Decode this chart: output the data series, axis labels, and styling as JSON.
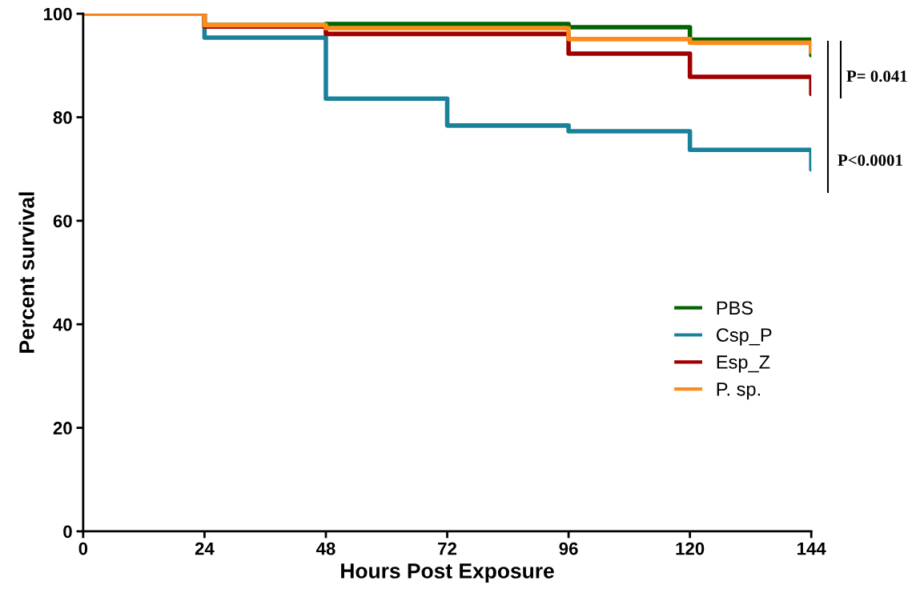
{
  "chart_data": {
    "type": "step",
    "xlabel": "Hours Post Exposure",
    "ylabel": "Percent survival",
    "xlim": [
      0,
      144
    ],
    "xticks": [
      0,
      24,
      48,
      72,
      96,
      120,
      144
    ],
    "ylim": [
      0,
      100
    ],
    "yticks": [
      0,
      20,
      40,
      60,
      80,
      100
    ],
    "grid": false,
    "legend": "right",
    "line_style": "solid",
    "series": [
      {
        "name": "PBS",
        "color": "#006400",
        "x": [
          0,
          24,
          48,
          72,
          96,
          120,
          144,
          144
        ],
        "values": [
          100,
          97.8,
          98.0,
          98.0,
          97.4,
          95.0,
          92.0,
          92.0
        ]
      },
      {
        "name": "Csp_P",
        "color": "#1a819b",
        "x": [
          0,
          24,
          48,
          72,
          96,
          120,
          144,
          144
        ],
        "values": [
          100,
          95.4,
          83.6,
          78.4,
          77.3,
          73.7,
          69.9,
          69.9
        ]
      },
      {
        "name": "Esp_Z",
        "color": "#a00000",
        "x": [
          0,
          24,
          48,
          72,
          96,
          120,
          144,
          144
        ],
        "values": [
          100,
          97.5,
          96.1,
          96.1,
          92.3,
          87.8,
          84.5,
          84.5
        ]
      },
      {
        "name": "P. sp.",
        "color": "#ff8c1a",
        "x": [
          0,
          24,
          48,
          72,
          96,
          120,
          144,
          144
        ],
        "values": [
          100,
          97.8,
          97.2,
          97.2,
          95.1,
          94.4,
          92.6,
          92.6
        ]
      }
    ],
    "annotations": [
      "P= 0.041",
      "P<0.0001"
    ]
  }
}
